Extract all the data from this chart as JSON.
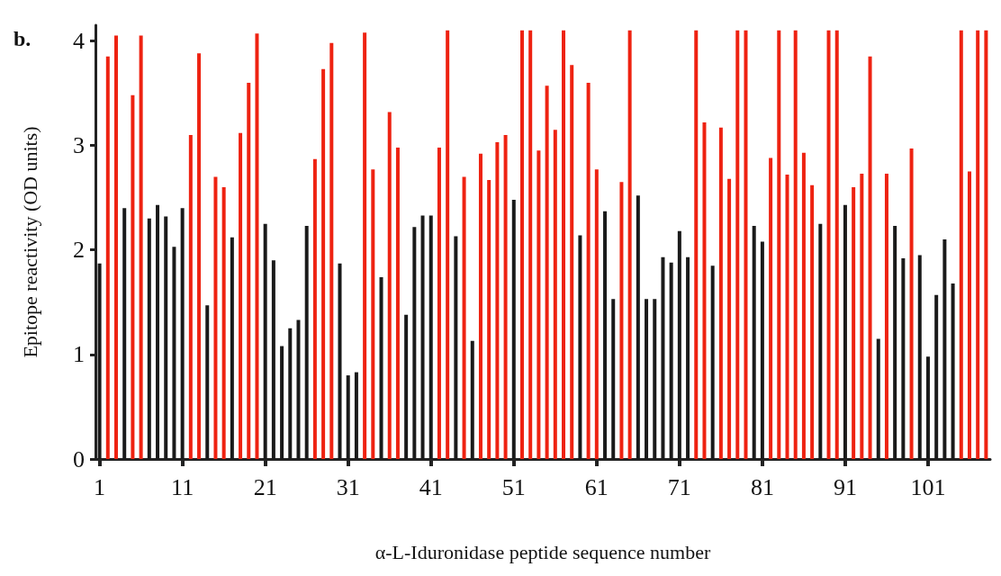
{
  "chart_data": {
    "type": "bar",
    "title": "b.",
    "xlabel": "α-L-Iduronidase peptide sequence number",
    "ylabel": "Epitope reactivity (OD units)",
    "x": [
      1,
      2,
      3,
      4,
      5,
      6,
      7,
      8,
      9,
      10,
      11,
      12,
      13,
      14,
      15,
      16,
      17,
      18,
      19,
      20,
      21,
      22,
      23,
      24,
      25,
      26,
      27,
      28,
      29,
      30,
      31,
      32,
      33,
      34,
      35,
      36,
      37,
      38,
      39,
      40,
      41,
      42,
      43,
      44,
      45,
      46,
      47,
      48,
      49,
      50,
      51,
      52,
      53,
      54,
      55,
      56,
      57,
      58,
      59,
      60,
      61,
      62,
      63,
      64,
      65,
      66,
      67,
      68,
      69,
      70,
      71,
      72,
      73,
      74,
      75,
      76,
      77,
      78,
      79,
      80,
      81,
      82,
      83,
      84,
      85,
      86,
      87,
      88,
      89,
      90,
      91,
      92,
      93,
      94,
      95,
      96,
      97,
      98,
      99,
      100,
      101,
      102,
      103,
      104,
      105,
      106,
      107,
      108
    ],
    "values": [
      1.87,
      3.85,
      4.05,
      2.4,
      3.48,
      4.05,
      2.3,
      2.43,
      2.32,
      2.03,
      2.4,
      3.1,
      3.88,
      1.47,
      2.7,
      2.6,
      2.12,
      3.12,
      3.6,
      4.07,
      2.25,
      1.9,
      1.08,
      1.25,
      1.33,
      2.23,
      2.87,
      3.73,
      3.98,
      1.87,
      0.8,
      0.83,
      4.08,
      2.77,
      1.74,
      3.32,
      2.98,
      1.38,
      2.22,
      2.33,
      2.33,
      2.98,
      4.1,
      2.13,
      2.7,
      1.13,
      2.92,
      2.67,
      3.03,
      3.1,
      2.48,
      4.1,
      4.1,
      2.95,
      3.57,
      3.15,
      4.1,
      3.77,
      2.14,
      3.6,
      2.77,
      2.37,
      1.53,
      2.65,
      4.1,
      2.52,
      1.53,
      1.53,
      1.93,
      1.88,
      2.18,
      1.93,
      4.1,
      3.22,
      1.85,
      3.17,
      2.68,
      4.1,
      4.1,
      2.23,
      2.08,
      2.88,
      4.1,
      2.72,
      4.1,
      2.93,
      2.62,
      2.25,
      4.1,
      4.1,
      2.43,
      2.6,
      2.73,
      3.85,
      1.15,
      2.73,
      2.23,
      1.92,
      2.97,
      1.95,
      0.98,
      1.57,
      2.1,
      1.68,
      4.1,
      2.75,
      4.1,
      4.1
    ],
    "colors": [
      "#1a1a1a",
      "#ee2211",
      "#ee2211",
      "#1a1a1a",
      "#ee2211",
      "#ee2211",
      "#1a1a1a",
      "#1a1a1a",
      "#1a1a1a",
      "#1a1a1a",
      "#1a1a1a",
      "#ee2211",
      "#ee2211",
      "#1a1a1a",
      "#ee2211",
      "#ee2211",
      "#1a1a1a",
      "#ee2211",
      "#ee2211",
      "#ee2211",
      "#1a1a1a",
      "#1a1a1a",
      "#1a1a1a",
      "#1a1a1a",
      "#1a1a1a",
      "#1a1a1a",
      "#ee2211",
      "#ee2211",
      "#ee2211",
      "#1a1a1a",
      "#1a1a1a",
      "#1a1a1a",
      "#ee2211",
      "#ee2211",
      "#1a1a1a",
      "#ee2211",
      "#ee2211",
      "#1a1a1a",
      "#1a1a1a",
      "#1a1a1a",
      "#1a1a1a",
      "#ee2211",
      "#ee2211",
      "#1a1a1a",
      "#ee2211",
      "#1a1a1a",
      "#ee2211",
      "#ee2211",
      "#ee2211",
      "#ee2211",
      "#1a1a1a",
      "#ee2211",
      "#ee2211",
      "#ee2211",
      "#ee2211",
      "#ee2211",
      "#ee2211",
      "#ee2211",
      "#1a1a1a",
      "#ee2211",
      "#ee2211",
      "#1a1a1a",
      "#1a1a1a",
      "#ee2211",
      "#ee2211",
      "#1a1a1a",
      "#1a1a1a",
      "#1a1a1a",
      "#1a1a1a",
      "#1a1a1a",
      "#1a1a1a",
      "#1a1a1a",
      "#ee2211",
      "#ee2211",
      "#1a1a1a",
      "#ee2211",
      "#ee2211",
      "#ee2211",
      "#ee2211",
      "#1a1a1a",
      "#1a1a1a",
      "#ee2211",
      "#ee2211",
      "#ee2211",
      "#ee2211",
      "#ee2211",
      "#ee2211",
      "#1a1a1a",
      "#ee2211",
      "#ee2211",
      "#1a1a1a",
      "#ee2211",
      "#ee2211",
      "#ee2211",
      "#1a1a1a",
      "#ee2211",
      "#1a1a1a",
      "#1a1a1a",
      "#ee2211",
      "#1a1a1a",
      "#1a1a1a",
      "#1a1a1a",
      "#1a1a1a",
      "#1a1a1a",
      "#ee2211",
      "#ee2211",
      "#ee2211",
      "#ee2211"
    ],
    "xlim": [
      0.5,
      108.5
    ],
    "xticks": [
      1,
      11,
      21,
      31,
      41,
      51,
      61,
      71,
      81,
      91,
      101
    ],
    "ylim": [
      0,
      4.15
    ],
    "yticks": [
      0,
      1,
      2,
      3,
      4
    ],
    "grid": false
  }
}
